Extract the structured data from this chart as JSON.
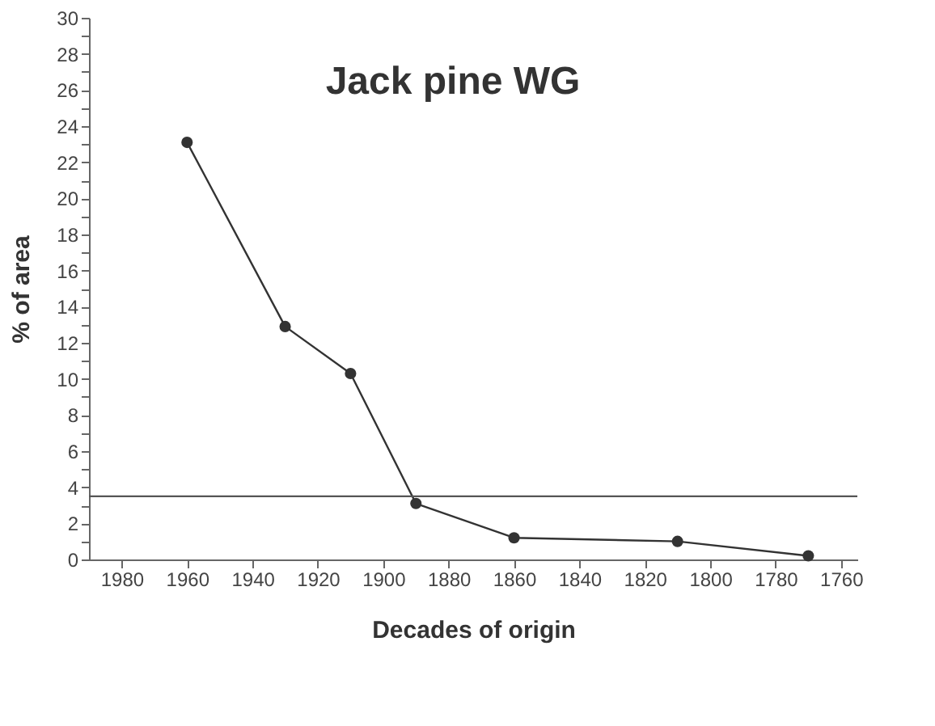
{
  "chart_data": {
    "type": "line",
    "title": "Jack pine WG",
    "xlabel": "Decades of origin",
    "ylabel": "% of area",
    "x": [
      1960,
      1930,
      1910,
      1890,
      1860,
      1810,
      1770
    ],
    "series": [
      {
        "color": "#333333",
        "values": [
          23.1,
          12.9,
          10.3,
          3.1,
          1.2,
          1.0,
          0.2
        ]
      }
    ],
    "xlim": [
      1990,
      1755
    ],
    "xticks": [
      1980,
      1960,
      1940,
      1920,
      1900,
      1880,
      1860,
      1840,
      1820,
      1800,
      1780,
      1760
    ],
    "ylim": [
      0,
      30
    ],
    "yticks": [
      0,
      {
        "value": 1,
        "label": null
      },
      2,
      {
        "value": 3,
        "label": null
      },
      4,
      {
        "value": 5,
        "label": null
      },
      6,
      {
        "value": 7,
        "label": null
      },
      8,
      {
        "value": 9,
        "label": null
      },
      10,
      {
        "value": 11,
        "label": null
      },
      12,
      {
        "value": 13,
        "label": null
      },
      14,
      {
        "value": 15,
        "label": null
      },
      16,
      {
        "value": 17,
        "label": null
      },
      18,
      {
        "value": 19,
        "label": null
      },
      20,
      {
        "value": 21,
        "label": null
      },
      22,
      {
        "value": 23,
        "label": null
      },
      24,
      {
        "value": 25,
        "label": null
      },
      26,
      {
        "value": 27,
        "label": null
      },
      28,
      {
        "value": 29,
        "label": null
      },
      30
    ],
    "ref_lines": [
      {
        "axis": "y",
        "value": 3.5,
        "color": "#555555"
      }
    ],
    "marker": "circle",
    "line_style": "solid",
    "grid": false
  }
}
